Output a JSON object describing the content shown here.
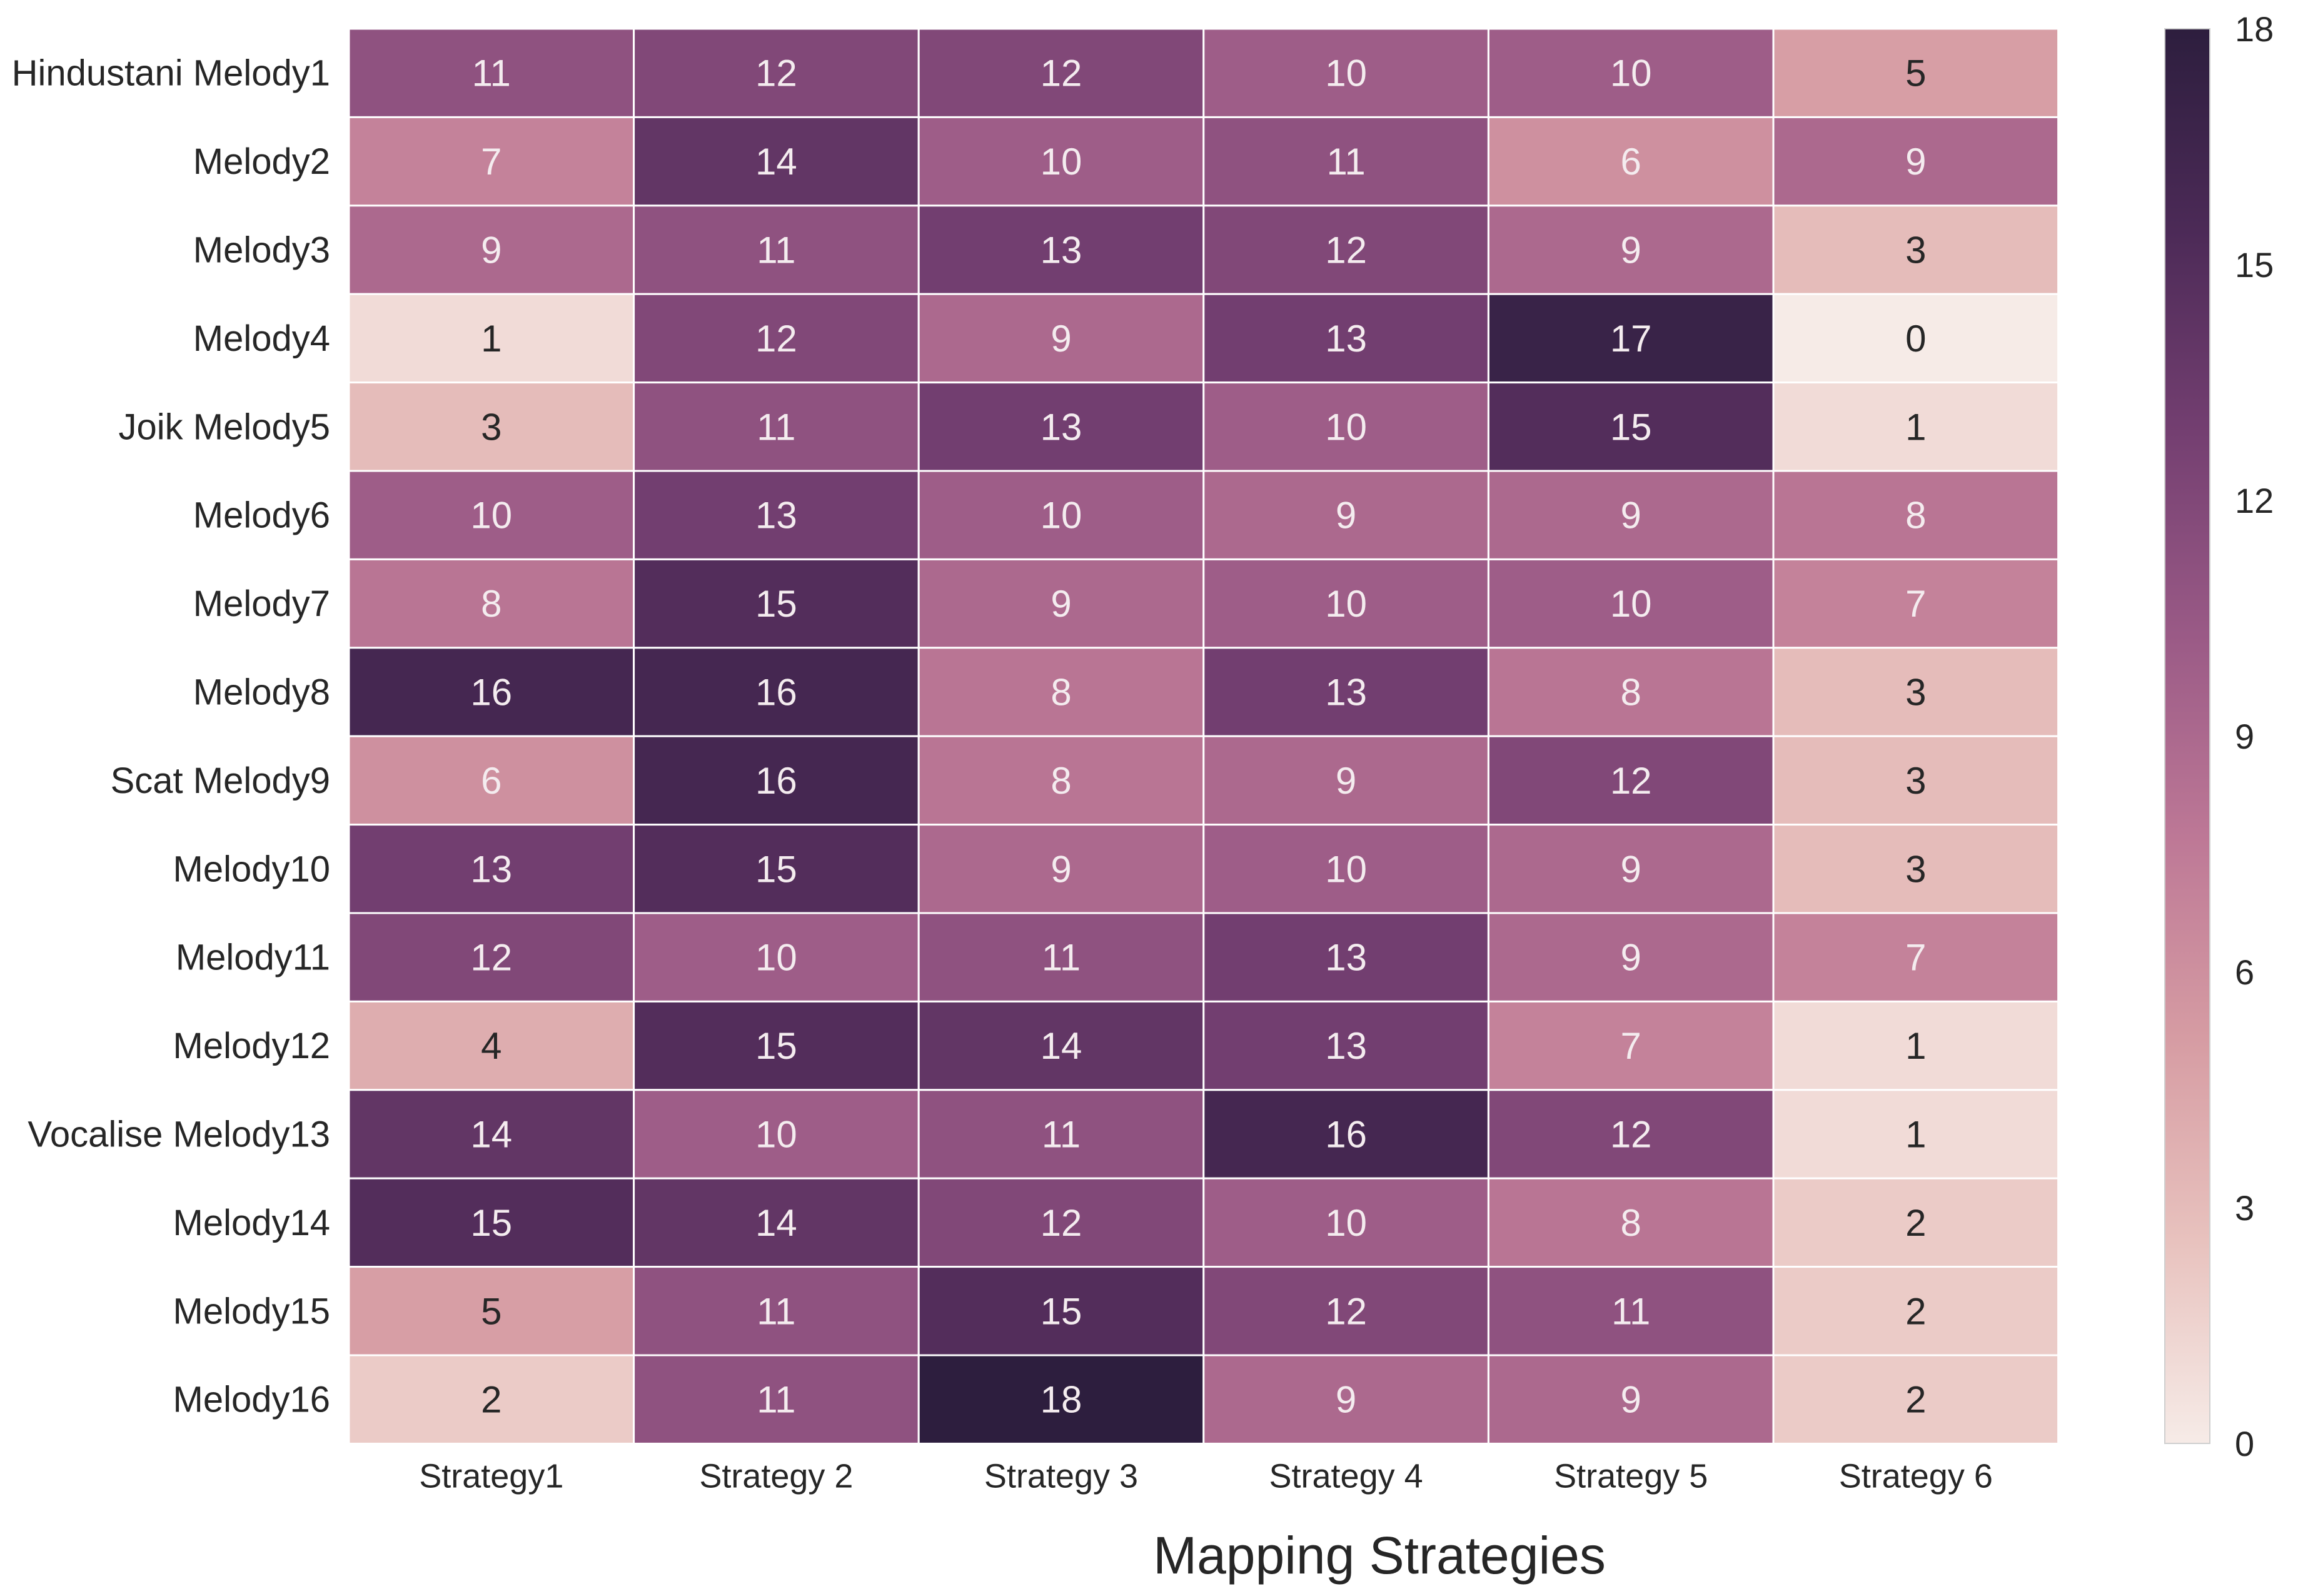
{
  "chart_data": {
    "type": "heatmap",
    "title": "",
    "xlabel": "Mapping Strategies",
    "ylabel": "",
    "rows": [
      "Hindustani Melody1",
      "Melody2",
      "Melody3",
      "Melody4",
      "Joik Melody5",
      "Melody6",
      "Melody7",
      "Melody8",
      "Scat Melody9",
      "Melody10",
      "Melody11",
      "Melody12",
      "Vocalise Melody13",
      "Melody14",
      "Melody15",
      "Melody16"
    ],
    "columns": [
      "Strategy1",
      "Strategy 2",
      "Strategy 3",
      "Strategy 4",
      "Strategy 5",
      "Strategy 6"
    ],
    "values": [
      [
        11,
        12,
        12,
        10,
        10,
        5
      ],
      [
        7,
        14,
        10,
        11,
        6,
        9
      ],
      [
        9,
        11,
        13,
        12,
        9,
        3
      ],
      [
        1,
        12,
        9,
        13,
        17,
        0
      ],
      [
        3,
        11,
        13,
        10,
        15,
        1
      ],
      [
        10,
        13,
        10,
        9,
        9,
        8
      ],
      [
        8,
        15,
        9,
        10,
        10,
        7
      ],
      [
        16,
        16,
        8,
        13,
        8,
        3
      ],
      [
        6,
        16,
        8,
        9,
        12,
        3
      ],
      [
        13,
        15,
        9,
        10,
        9,
        3
      ],
      [
        12,
        10,
        11,
        13,
        9,
        7
      ],
      [
        4,
        15,
        14,
        13,
        7,
        1
      ],
      [
        14,
        10,
        11,
        16,
        12,
        1
      ],
      [
        15,
        14,
        12,
        10,
        8,
        2
      ],
      [
        5,
        11,
        15,
        12,
        11,
        2
      ],
      [
        2,
        11,
        18,
        9,
        9,
        2
      ]
    ],
    "vmin": 0,
    "vmax": 18,
    "colorbar_ticks": [
      "0",
      "3",
      "6",
      "9",
      "12",
      "15",
      "18"
    ],
    "colorbar_tick_values": [
      0,
      3,
      6,
      9,
      12,
      15,
      18
    ],
    "colormap": [
      "#f6ebe7",
      "#e8c2be",
      "#d69ca3",
      "#bd7896",
      "#9a5a86",
      "#743f71",
      "#4c2a57",
      "#2d1e3e"
    ],
    "text_light": "#f4ecef",
    "text_dark": "#262626"
  }
}
